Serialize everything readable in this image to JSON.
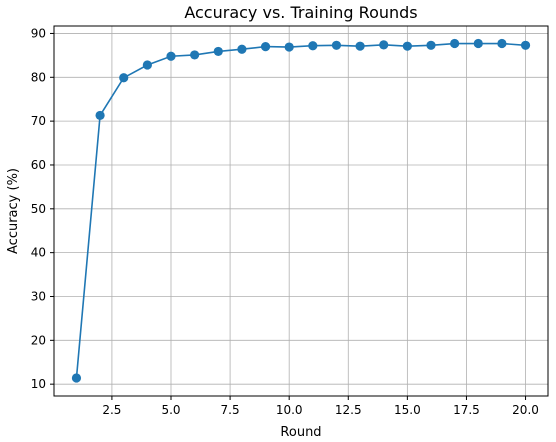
{
  "chart_data": {
    "type": "line",
    "title": "Accuracy vs. Training Rounds",
    "xlabel": "Round",
    "ylabel": "Accuracy (%)",
    "xlim": [
      0.05,
      20.95
    ],
    "ylim": [
      7.3,
      91.7
    ],
    "xticks": [
      2.5,
      5.0,
      7.5,
      10.0,
      12.5,
      15.0,
      17.5,
      20.0
    ],
    "xtick_labels": [
      "2.5",
      "5.0",
      "7.5",
      "10.0",
      "12.5",
      "15.0",
      "17.5",
      "20.0"
    ],
    "yticks": [
      10,
      20,
      30,
      40,
      50,
      60,
      70,
      80,
      90
    ],
    "ytick_labels": [
      "10",
      "20",
      "30",
      "40",
      "50",
      "60",
      "70",
      "80",
      "90"
    ],
    "grid": true,
    "color": "#1f77b4",
    "x": [
      1,
      2,
      3,
      4,
      5,
      6,
      7,
      8,
      9,
      10,
      11,
      12,
      13,
      14,
      15,
      16,
      17,
      18,
      19,
      20
    ],
    "y": [
      11.4,
      71.3,
      79.9,
      82.8,
      84.8,
      85.1,
      85.9,
      86.4,
      87.0,
      86.9,
      87.2,
      87.3,
      87.1,
      87.4,
      87.1,
      87.3,
      87.7,
      87.7,
      87.7,
      87.3
    ]
  }
}
